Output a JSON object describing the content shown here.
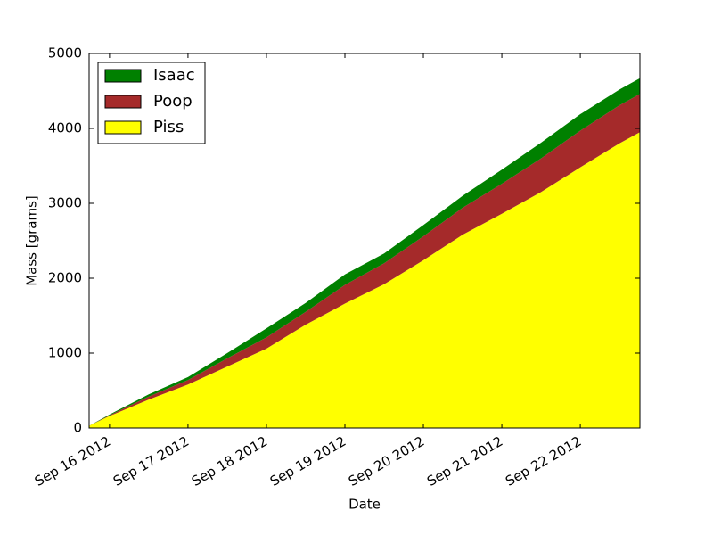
{
  "chart_data": {
    "type": "stacked_area",
    "xlabel": "Date",
    "ylabel": "Mass [grams]",
    "x": [
      -0.26,
      0,
      0.5,
      1,
      1.5,
      2,
      2.5,
      3,
      3.5,
      4,
      4.5,
      5,
      5.5,
      6,
      6.5,
      6.76
    ],
    "series": [
      {
        "name": "Piss",
        "color": "#ffff00",
        "values": [
          30,
          160,
          380,
          580,
          820,
          1060,
          1380,
          1660,
          1920,
          2240,
          2580,
          2860,
          3150,
          3480,
          3800,
          3950
        ]
      },
      {
        "name": "Poop",
        "color": "#a52a2a",
        "values": [
          0,
          10,
          40,
          60,
          110,
          150,
          170,
          250,
          280,
          320,
          360,
          400,
          450,
          490,
          510,
          510
        ]
      },
      {
        "name": "Isaac",
        "color": "#008000",
        "values": [
          0,
          10,
          30,
          40,
          70,
          120,
          120,
          140,
          130,
          150,
          160,
          190,
          210,
          220,
          210,
          210
        ]
      }
    ],
    "xlim": [
      -0.26,
      6.76
    ],
    "xticks": [
      {
        "value": 0,
        "label": "Sep 16 2012"
      },
      {
        "value": 1,
        "label": "Sep 17 2012"
      },
      {
        "value": 2,
        "label": "Sep 18 2012"
      },
      {
        "value": 3,
        "label": "Sep 19 2012"
      },
      {
        "value": 4,
        "label": "Sep 20 2012"
      },
      {
        "value": 5,
        "label": "Sep 21 2012"
      },
      {
        "value": 6,
        "label": "Sep 22 2012"
      }
    ],
    "ylim": [
      0,
      5000
    ],
    "yticks": [
      0,
      1000,
      2000,
      3000,
      4000,
      5000
    ],
    "grid": false,
    "legend": "upper-left"
  }
}
